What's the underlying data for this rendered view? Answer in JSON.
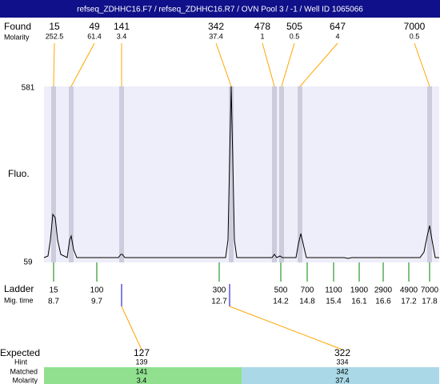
{
  "header": {
    "title": "refseq_ZDHHC16.F7 / refseq_ZDHHC16.R7 / OVN Pool 3 / -1 / Well ID 1065066"
  },
  "found": {
    "label": "Found",
    "sublabel": "Molarity",
    "peaks": [
      {
        "size": 15,
        "molarity": 252.5
      },
      {
        "size": 49,
        "molarity": 61.4
      },
      {
        "size": 141,
        "molarity": 3.4
      },
      {
        "size": 342,
        "molarity": 37.4
      },
      {
        "size": 478,
        "molarity": 1
      },
      {
        "size": 505,
        "molarity": 0.5
      },
      {
        "size": 647,
        "molarity": 4
      },
      {
        "size": 7000,
        "molarity": 0.5
      }
    ]
  },
  "axis": {
    "label": "Fluo.",
    "max": 581,
    "min": 59
  },
  "ladder": {
    "label": "Ladder",
    "sublabel": "Mig. time",
    "items": [
      {
        "size": 15,
        "time": 8.7
      },
      {
        "size": 100,
        "time": 9.7
      },
      {
        "size": 300,
        "time": 12.7
      },
      {
        "size": 500,
        "time": 14.2
      },
      {
        "size": 700,
        "time": 14.8
      },
      {
        "size": 1100,
        "time": 15.4
      },
      {
        "size": 1900,
        "time": 16.1
      },
      {
        "size": 2900,
        "time": 16.6
      },
      {
        "size": 4900,
        "time": 17.2
      },
      {
        "size": 7000,
        "time": 17.8
      }
    ]
  },
  "expected": {
    "label": "Expected",
    "hint_label": "Hint",
    "matched_label": "Matched",
    "molarity_label": "Molarity",
    "items": [
      {
        "expected": 127,
        "hint": 139,
        "matched": 141,
        "molarity": 3.4
      },
      {
        "expected": 322,
        "hint": 334,
        "matched": 342,
        "molarity": 37.4
      }
    ]
  }
}
